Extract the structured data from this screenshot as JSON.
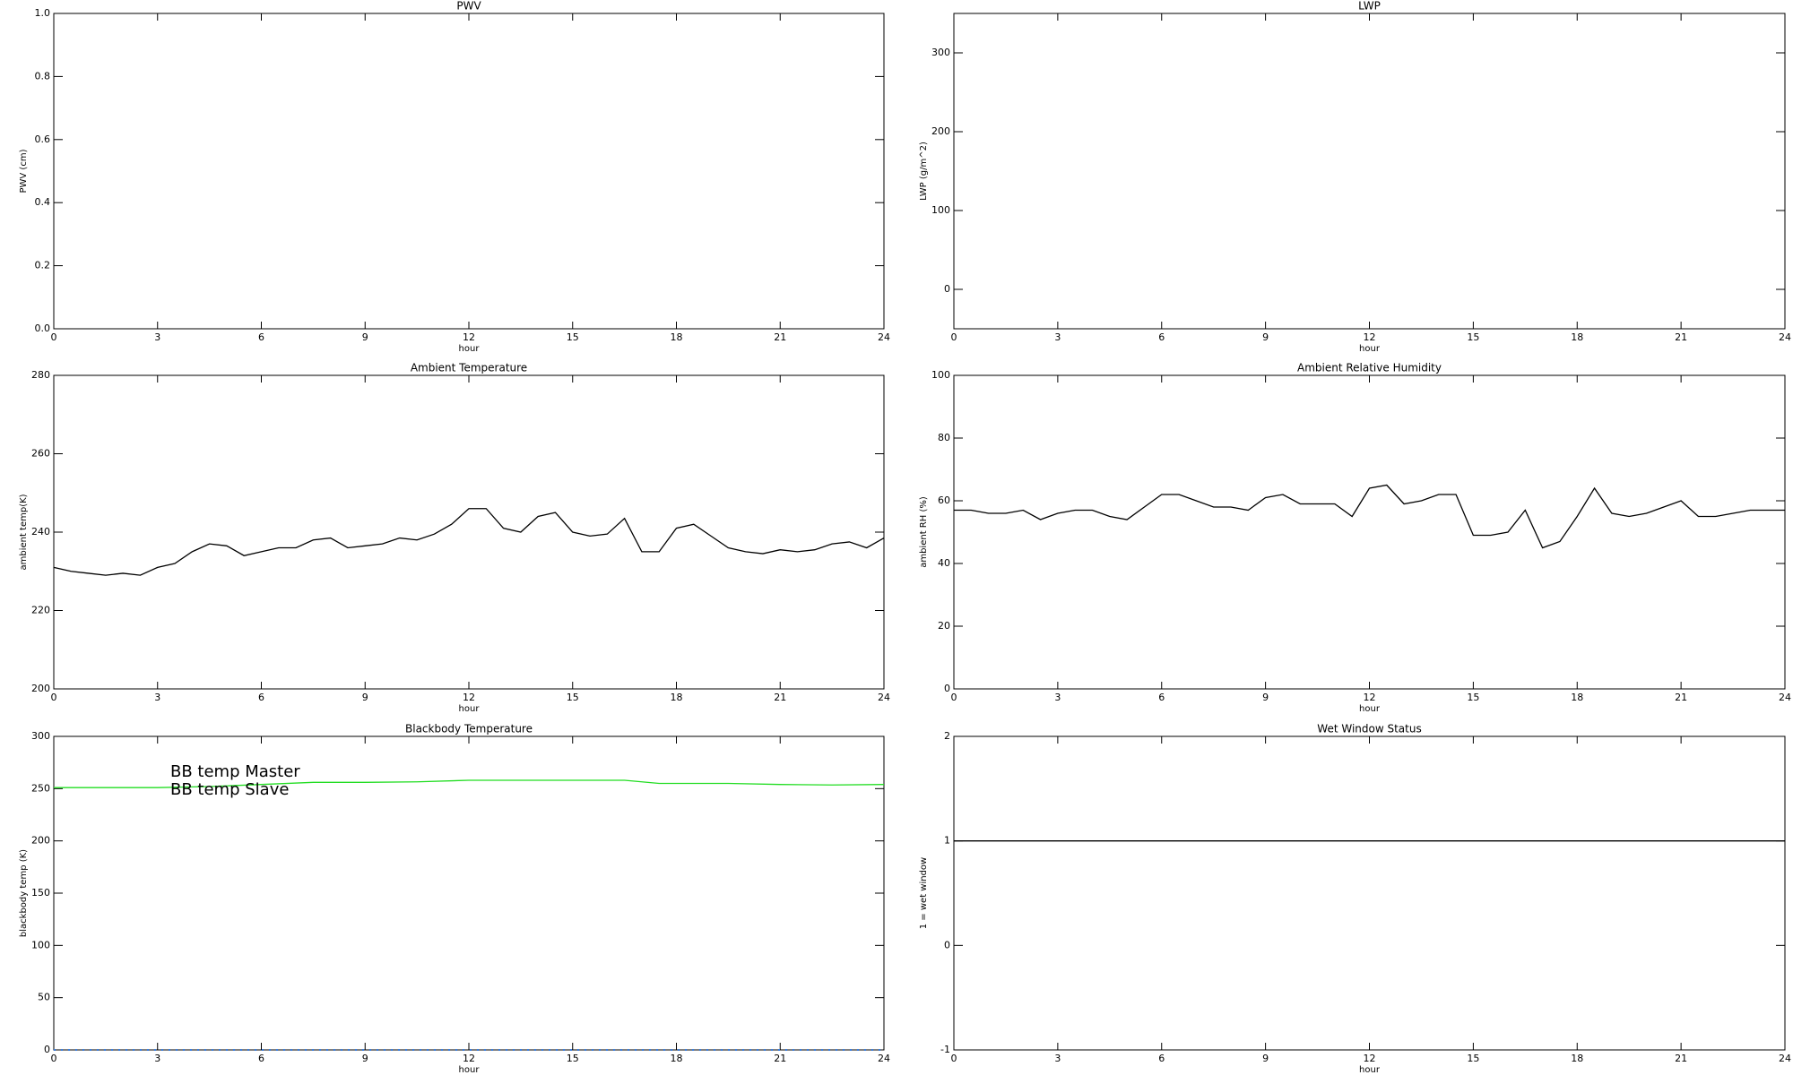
{
  "chart_data": [
    {
      "type": "line",
      "title": "PWV",
      "xlabel": "hour",
      "ylabel": "PWV (cm)",
      "xlim": [
        0,
        24
      ],
      "xticks": [
        0,
        3,
        6,
        9,
        12,
        15,
        18,
        21,
        24
      ],
      "ylim": [
        0,
        1
      ],
      "yticks": [
        {
          "value": 0,
          "label": "0.0"
        },
        0.2,
        0.4,
        0.6,
        0.8,
        {
          "value": 1,
          "label": "1.0"
        }
      ],
      "series": []
    },
    {
      "type": "line",
      "title": "LWP",
      "xlabel": "hour",
      "ylabel": "LWP (g/m^2)",
      "xlim": [
        0,
        24
      ],
      "xticks": [
        0,
        3,
        6,
        9,
        12,
        15,
        18,
        21,
        24
      ],
      "ylim": [
        -50,
        350
      ],
      "yticks": [
        0,
        100,
        200,
        300
      ],
      "series": []
    },
    {
      "type": "line",
      "title": "Ambient Temperature",
      "xlabel": "hour",
      "ylabel": "ambient temp(K)",
      "xlim": [
        0,
        24
      ],
      "xticks": [
        0,
        3,
        6,
        9,
        12,
        15,
        18,
        21,
        24
      ],
      "ylim": [
        200,
        280
      ],
      "yticks": [
        200,
        220,
        240,
        260,
        280
      ],
      "series": [
        {
          "color": "#000000",
          "x": [
            0,
            0.5,
            1,
            1.5,
            2,
            2.5,
            3,
            3.5,
            4,
            4.5,
            5,
            5.5,
            6,
            6.5,
            7,
            7.5,
            8,
            8.5,
            9,
            9.5,
            10,
            10.5,
            11,
            11.5,
            12,
            12.5,
            13,
            13.5,
            14,
            14.5,
            15,
            15.5,
            16,
            16.5,
            17,
            17.5,
            18,
            18.5,
            19,
            19.5,
            20,
            20.5,
            21,
            21.5,
            22,
            22.5,
            23,
            23.5,
            24
          ],
          "values": [
            231,
            230,
            229.5,
            229,
            229.5,
            229,
            231,
            232,
            235,
            237,
            236.5,
            234,
            235,
            236,
            236,
            238,
            238.5,
            236,
            236.5,
            237,
            238.5,
            238,
            239.5,
            242,
            246,
            246,
            241,
            240,
            244,
            245,
            240,
            239,
            239.5,
            243.5,
            235,
            235,
            241,
            242,
            239,
            236,
            235,
            234.5,
            235.5,
            235,
            235.5,
            237,
            237.5,
            236,
            238.5
          ]
        }
      ]
    },
    {
      "type": "line",
      "title": "Ambient Relative Humidity",
      "xlabel": "hour",
      "ylabel": "ambient RH (%)",
      "xlim": [
        0,
        24
      ],
      "xticks": [
        0,
        3,
        6,
        9,
        12,
        15,
        18,
        21,
        24
      ],
      "ylim": [
        0,
        100
      ],
      "yticks": [
        0,
        20,
        40,
        60,
        80,
        100
      ],
      "series": [
        {
          "color": "#000000",
          "x": [
            0,
            0.5,
            1,
            1.5,
            2,
            2.5,
            3,
            3.5,
            4,
            4.5,
            5,
            5.5,
            6,
            6.5,
            7,
            7.5,
            8,
            8.5,
            9,
            9.5,
            10,
            10.5,
            11,
            11.5,
            12,
            12.5,
            13,
            13.5,
            14,
            14.5,
            15,
            15.5,
            16,
            16.5,
            17,
            17.5,
            18,
            18.5,
            19,
            19.5,
            20,
            20.5,
            21,
            21.5,
            22,
            22.5,
            23,
            23.5,
            24
          ],
          "values": [
            57,
            57,
            56,
            56,
            57,
            54,
            56,
            57,
            57,
            55,
            54,
            58,
            62,
            62,
            60,
            58,
            58,
            57,
            61,
            62,
            59,
            59,
            59,
            55,
            64,
            65,
            59,
            60,
            62,
            62,
            49,
            49,
            50,
            57,
            45,
            47,
            55,
            64,
            56,
            55,
            56,
            58,
            60,
            55,
            55,
            56,
            57,
            57,
            57
          ]
        }
      ]
    },
    {
      "type": "line",
      "title": "Blackbody Temperature",
      "xlabel": "hour",
      "ylabel": "blackbody temp (K)",
      "xlim": [
        0,
        24
      ],
      "xticks": [
        0,
        3,
        6,
        9,
        12,
        15,
        18,
        21,
        24
      ],
      "ylim": [
        0,
        300
      ],
      "yticks": [
        0,
        50,
        100,
        150,
        200,
        250,
        300
      ],
      "series": [
        {
          "name": "BB temp Master",
          "color": "#3a7fe0",
          "linestyle": "dotted",
          "x": [
            0,
            24
          ],
          "values": [
            0,
            0
          ]
        },
        {
          "name": "BB temp Slave",
          "color": "#22dd22",
          "x": [
            0,
            1.5,
            3,
            4.5,
            6,
            7.5,
            9,
            10.5,
            12,
            13.5,
            15,
            16.5,
            17.5,
            19.5,
            21,
            22.5,
            24
          ],
          "values": [
            251,
            251,
            251,
            252,
            254,
            256,
            256,
            256.5,
            258,
            258,
            258,
            258,
            255,
            255,
            254,
            253.5,
            254
          ]
        }
      ]
    },
    {
      "type": "line",
      "title": "Wet Window Status",
      "xlabel": "hour",
      "ylabel": "1 = wet window",
      "xlim": [
        0,
        24
      ],
      "xticks": [
        0,
        3,
        6,
        9,
        12,
        15,
        18,
        21,
        24
      ],
      "ylim": [
        -1,
        2
      ],
      "yticks": [
        -1,
        0,
        1,
        2
      ],
      "series": [
        {
          "color": "#000000",
          "x": [
            0,
            24
          ],
          "values": [
            1,
            1
          ]
        }
      ]
    }
  ]
}
